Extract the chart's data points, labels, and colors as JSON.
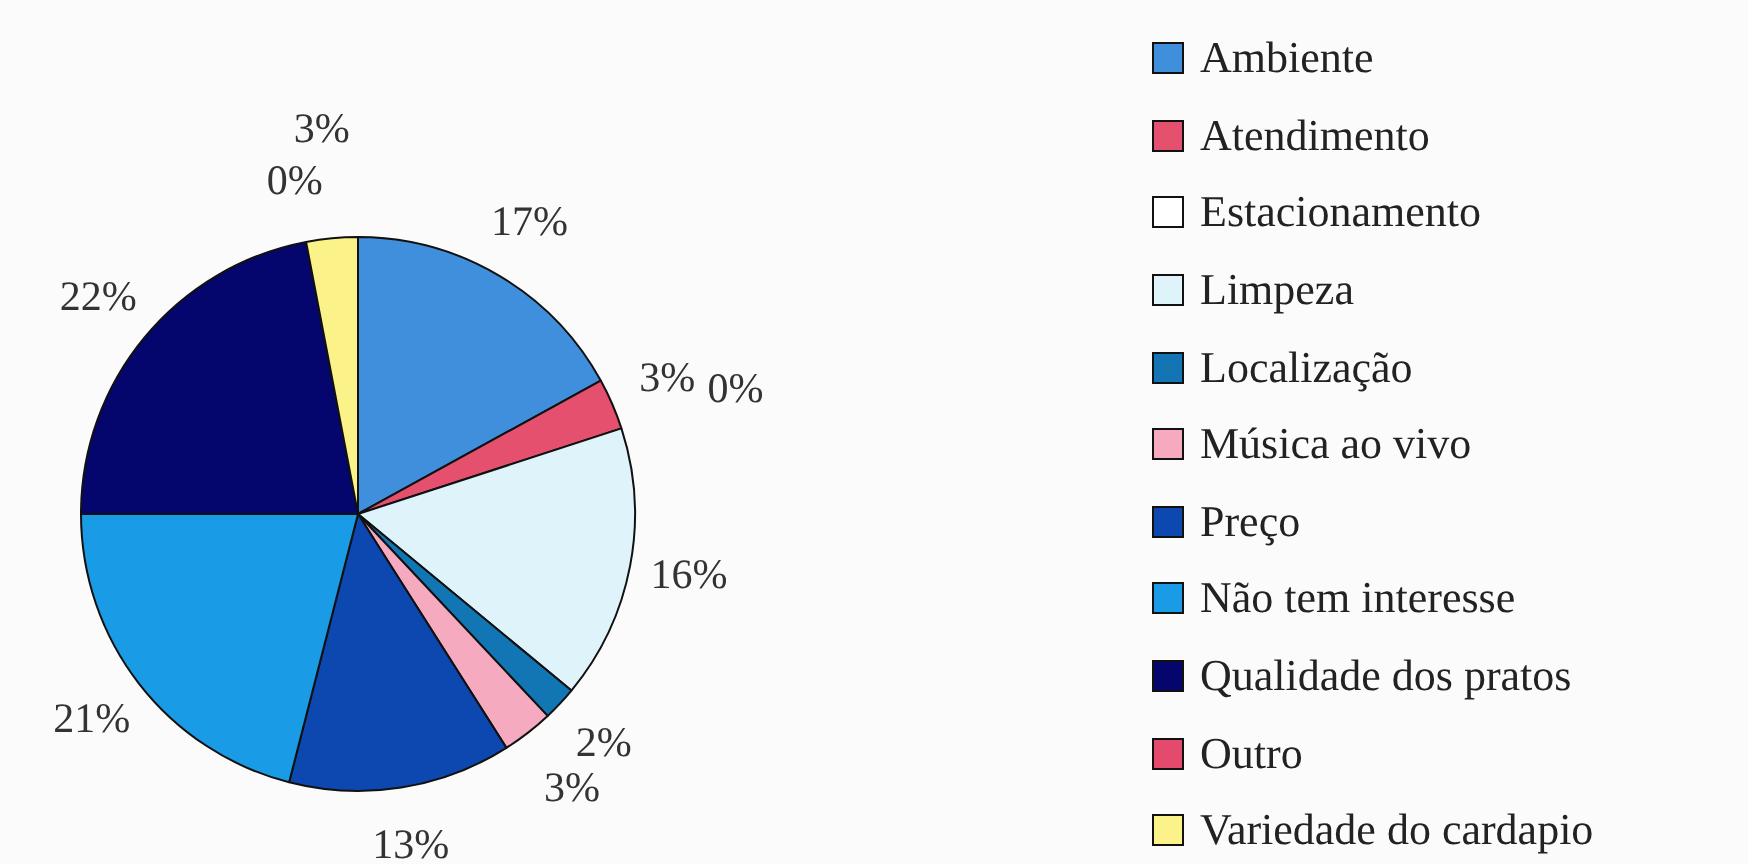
{
  "chart_data": {
    "type": "pie",
    "categories": [
      "Ambiente",
      "Atendimento",
      "Estacionamento",
      "Limpeza",
      "Localização",
      "Música ao vivo",
      "Preço",
      "Não tem interesse",
      "Qualidade dos pratos",
      "Outro",
      "Variedade do cardapio"
    ],
    "values": [
      17,
      3,
      0,
      16,
      2,
      3,
      13,
      21,
      22,
      0,
      3
    ],
    "colors": [
      "#3f8fdc",
      "#e4506e",
      "#ffffff",
      "#dff3fb",
      "#1276b4",
      "#f5aac0",
      "#0d47b0",
      "#1a9be6",
      "#05056e",
      "#e44a6c",
      "#fbf38a"
    ],
    "value_labels": [
      "17%",
      "3%",
      "0%",
      "16%",
      "2%",
      "3%",
      "13%",
      "21%",
      "22%",
      "0%",
      "3%"
    ],
    "legend": "right"
  }
}
